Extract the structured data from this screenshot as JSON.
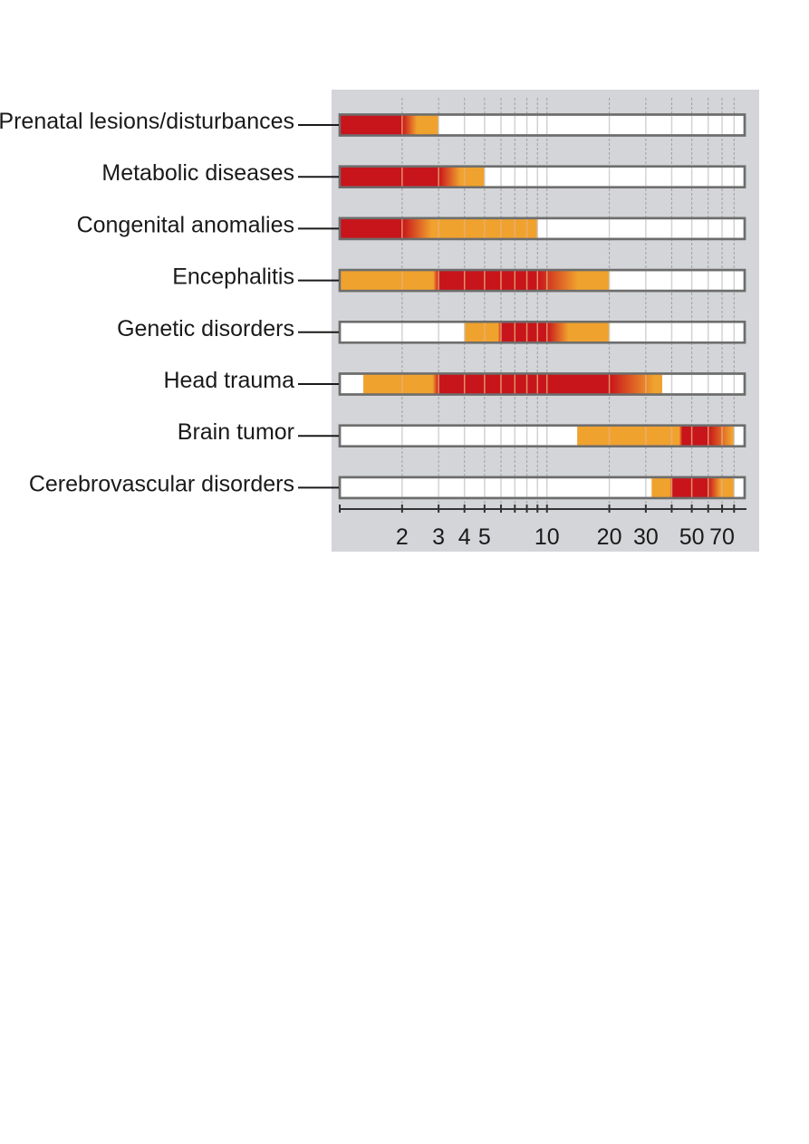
{
  "chart_data": {
    "type": "bar",
    "subtype": "floating-range-log-x",
    "x_scale": "log",
    "xlim": [
      1,
      90
    ],
    "categories": [
      "Prenatal lesions/disturbances",
      "Metabolic diseases",
      "Congenital anomalies",
      "Encephalitis",
      "Genetic disorders",
      "Head trauma",
      "Brain tumor",
      "Cerebrovascular disorders"
    ],
    "ranges": [
      {
        "start": 1,
        "end": 3
      },
      {
        "start": 1,
        "end": 5
      },
      {
        "start": 1,
        "end": 9
      },
      {
        "start": 1,
        "end": 20
      },
      {
        "start": 4,
        "end": 20
      },
      {
        "start": 1.3,
        "end": 36
      },
      {
        "start": 14,
        "end": 80
      },
      {
        "start": 32,
        "end": 80
      }
    ],
    "peak_ranges": [
      {
        "start": 1,
        "end": 2
      },
      {
        "start": 1,
        "end": 3
      },
      {
        "start": 1,
        "end": 2
      },
      {
        "start": 3,
        "end": 9
      },
      {
        "start": 6,
        "end": 10
      },
      {
        "start": 3,
        "end": 20
      },
      {
        "start": 45,
        "end": 60
      },
      {
        "start": 40,
        "end": 60
      }
    ],
    "tick_labels": [
      "2",
      "3",
      "4",
      "5",
      "10",
      "20",
      "30",
      "50",
      "70"
    ],
    "tick_values": [
      2,
      3,
      4,
      5,
      10,
      20,
      30,
      50,
      70
    ],
    "minor_ticks": [
      1,
      6,
      7,
      8,
      9,
      40,
      60,
      80,
      90
    ],
    "title": "",
    "xlabel": "",
    "ylabel": "",
    "grid": true,
    "legend": "none",
    "colors": {
      "panel": "#d4d5d8",
      "bar_empty": "#ffffff",
      "bar_outline": "#6d6d6d",
      "orange": "#f0a22e",
      "red": "#c8141b",
      "gridline": "#8a8a8a"
    }
  }
}
